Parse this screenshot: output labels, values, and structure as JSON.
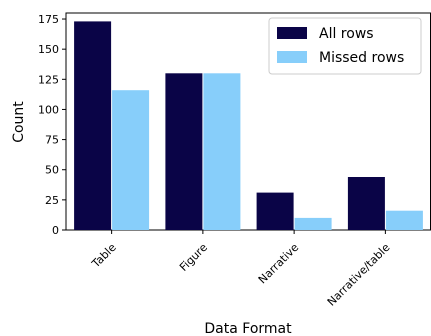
{
  "chart_data": {
    "type": "bar",
    "categories": [
      "Table",
      "Figure",
      "Narrative",
      "Narrative/table"
    ],
    "series": [
      {
        "name": "All rows",
        "values": [
          173,
          130,
          31,
          44
        ],
        "color": "#0a0447"
      },
      {
        "name": "Missed rows",
        "values": [
          116,
          130,
          10,
          16
        ],
        "color": "#87cefa"
      }
    ],
    "xlabel": "Data Format",
    "ylabel": "Count",
    "ylim": [
      0,
      180
    ],
    "yticks": [
      0,
      25,
      50,
      75,
      100,
      125,
      150,
      175
    ],
    "legend_position": "top-right",
    "grid": false
  }
}
